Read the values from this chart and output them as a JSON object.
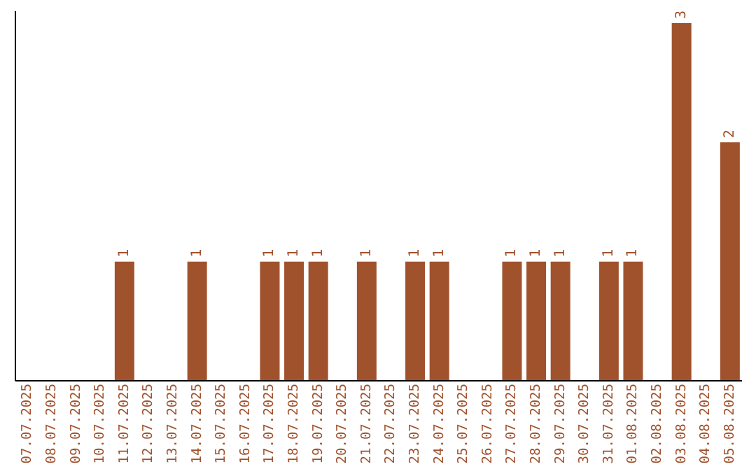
{
  "chart_data": {
    "type": "bar",
    "categories": [
      "07.07.2025",
      "08.07.2025",
      "09.07.2025",
      "10.07.2025",
      "11.07.2025",
      "12.07.2025",
      "13.07.2025",
      "14.07.2025",
      "15.07.2025",
      "16.07.2025",
      "17.07.2025",
      "18.07.2025",
      "19.07.2025",
      "20.07.2025",
      "21.07.2025",
      "22.07.2025",
      "23.07.2025",
      "24.07.2025",
      "25.07.2025",
      "26.07.2025",
      "27.07.2025",
      "28.07.2025",
      "29.07.2025",
      "30.07.2025",
      "31.07.2025",
      "01.08.2025",
      "02.08.2025",
      "03.08.2025",
      "04.08.2025",
      "05.08.2025"
    ],
    "values": [
      null,
      null,
      null,
      null,
      1,
      null,
      null,
      1,
      null,
      null,
      1,
      1,
      1,
      null,
      1,
      null,
      1,
      1,
      null,
      null,
      1,
      1,
      1,
      null,
      1,
      1,
      null,
      3,
      null,
      2
    ],
    "color": "#a0522d",
    "ylim": [
      0,
      3.1
    ],
    "data_labels": true,
    "tick_labels": "x"
  }
}
